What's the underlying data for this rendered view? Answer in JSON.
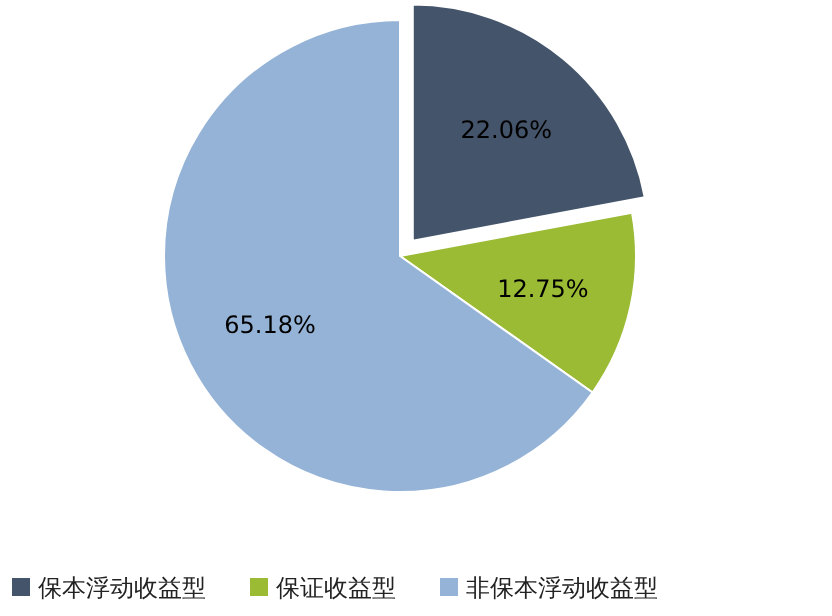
{
  "chart_data": {
    "type": "pie",
    "categories": [
      "保本浮动收益型",
      "保证收益型",
      "非保本浮动收益型"
    ],
    "values": [
      22.06,
      12.75,
      65.18
    ],
    "colors": [
      "#44546a",
      "#9bbb35",
      "#95b3d7"
    ],
    "value_labels": [
      "22.06%",
      "12.75%",
      "65.18%"
    ],
    "legend": "bottom"
  }
}
